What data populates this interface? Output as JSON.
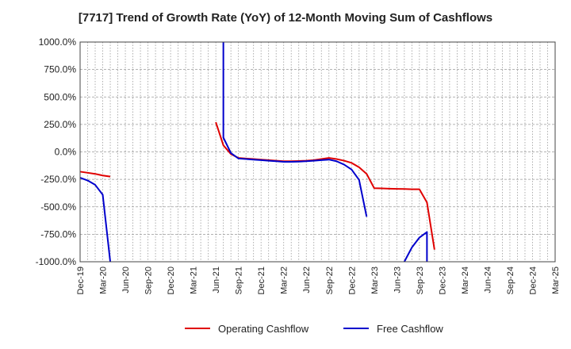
{
  "chart_data": {
    "type": "line",
    "title": "[7717]  Trend of Growth Rate (YoY) of 12-Month Moving Sum of Cashflows",
    "xlabel": "",
    "ylabel": "",
    "ylim": [
      -1000,
      1000
    ],
    "y_ticks": [
      1000,
      750,
      500,
      250,
      0,
      -250,
      -500,
      -750,
      -1000
    ],
    "y_tick_labels": [
      "1000.0%",
      "750.0%",
      "500.0%",
      "250.0%",
      "0.0%",
      "-250.0%",
      "-500.0%",
      "-750.0%",
      "-1000.0%"
    ],
    "x_range": [
      "2019-12",
      "2025-03"
    ],
    "x_tick_labels": [
      "Dec-19",
      "Mar-20",
      "Jun-20",
      "Sep-20",
      "Dec-20",
      "Mar-21",
      "Jun-21",
      "Sep-21",
      "Dec-21",
      "Mar-22",
      "Jun-22",
      "Sep-22",
      "Dec-22",
      "Mar-23",
      "Jun-23",
      "Sep-23",
      "Dec-23",
      "Mar-24",
      "Jun-24",
      "Sep-24",
      "Dec-24",
      "Mar-25"
    ],
    "grid": true,
    "legend_position": "bottom",
    "series": [
      {
        "name": "Operating Cashflow",
        "color": "#e00000",
        "segments": [
          [
            [
              "2019-12",
              -180
            ],
            [
              "2020-01",
              -190
            ],
            [
              "2020-02",
              -200
            ],
            [
              "2020-03",
              -215
            ],
            [
              "2020-04",
              -225
            ]
          ],
          [
            [
              "2021-06",
              270
            ],
            [
              "2021-07",
              60
            ],
            [
              "2021-08",
              -20
            ],
            [
              "2021-09",
              -55
            ],
            [
              "2021-10",
              -60
            ],
            [
              "2021-11",
              -65
            ],
            [
              "2021-12",
              -70
            ],
            [
              "2022-01",
              -75
            ],
            [
              "2022-02",
              -80
            ],
            [
              "2022-03",
              -85
            ],
            [
              "2022-04",
              -85
            ],
            [
              "2022-05",
              -83
            ],
            [
              "2022-06",
              -80
            ],
            [
              "2022-07",
              -75
            ],
            [
              "2022-08",
              -65
            ],
            [
              "2022-09",
              -55
            ],
            [
              "2022-10",
              -65
            ],
            [
              "2022-11",
              -80
            ],
            [
              "2022-12",
              -100
            ],
            [
              "2023-01",
              -140
            ],
            [
              "2023-02",
              -200
            ],
            [
              "2023-03",
              -330
            ],
            [
              "2023-04",
              -332
            ],
            [
              "2023-05",
              -335
            ],
            [
              "2023-06",
              -337
            ],
            [
              "2023-07",
              -338
            ],
            [
              "2023-08",
              -340
            ],
            [
              "2023-09",
              -340
            ],
            [
              "2023-10",
              -460
            ],
            [
              "2023-11",
              -890
            ]
          ]
        ]
      },
      {
        "name": "Free Cashflow",
        "color": "#0000cc",
        "segments": [
          [
            [
              "2019-12",
              -235
            ],
            [
              "2020-01",
              -260
            ],
            [
              "2020-02",
              -300
            ],
            [
              "2020-03",
              -390
            ],
            [
              "2020-04",
              -1000
            ]
          ],
          [
            [
              "2021-07",
              1000
            ],
            [
              "2021-07",
              130
            ],
            [
              "2021-08",
              -10
            ],
            [
              "2021-09",
              -60
            ],
            [
              "2021-10",
              -65
            ],
            [
              "2021-11",
              -70
            ],
            [
              "2021-12",
              -75
            ],
            [
              "2022-01",
              -80
            ],
            [
              "2022-02",
              -85
            ],
            [
              "2022-03",
              -90
            ],
            [
              "2022-04",
              -90
            ],
            [
              "2022-05",
              -88
            ],
            [
              "2022-06",
              -85
            ],
            [
              "2022-07",
              -80
            ],
            [
              "2022-08",
              -75
            ],
            [
              "2022-09",
              -70
            ],
            [
              "2022-10",
              -85
            ],
            [
              "2022-11",
              -115
            ],
            [
              "2022-12",
              -160
            ],
            [
              "2023-01",
              -255
            ],
            [
              "2023-02",
              -590
            ]
          ],
          [
            [
              "2023-07",
              -1000
            ],
            [
              "2023-08",
              -870
            ],
            [
              "2023-09",
              -780
            ],
            [
              "2023-10",
              -730
            ],
            [
              "2023-10",
              -1000
            ]
          ]
        ]
      }
    ]
  }
}
